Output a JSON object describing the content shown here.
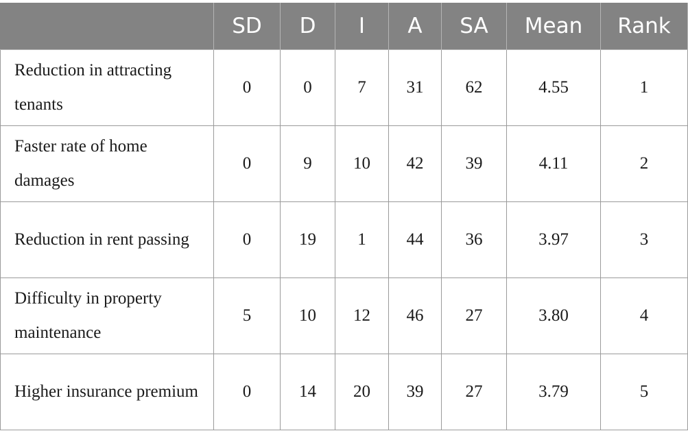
{
  "table": {
    "headers": [
      "",
      "SD",
      "D",
      "I",
      "A",
      "SA",
      "Mean",
      "Rank"
    ],
    "rows": [
      {
        "label": "Reduction in attracting tenants",
        "SD": "0",
        "D": "0",
        "I": "7",
        "A": "31",
        "SA": "62",
        "mean": "4.55",
        "rank": "1"
      },
      {
        "label": "Faster rate of home damages",
        "SD": "0",
        "D": "9",
        "I": "10",
        "A": "42",
        "SA": "39",
        "mean": "4.11",
        "rank": "2"
      },
      {
        "label": "Reduction in rent passing",
        "SD": "0",
        "D": "19",
        "I": "1",
        "A": "44",
        "SA": "36",
        "mean": "3.97",
        "rank": "3"
      },
      {
        "label": "Difficulty in property maintenance",
        "SD": "5",
        "D": "10",
        "I": "12",
        "A": "46",
        "SA": "27",
        "mean": "3.80",
        "rank": "4"
      },
      {
        "label": "Higher insurance premium",
        "SD": "0",
        "D": "14",
        "I": "20",
        "A": "39",
        "SA": "27",
        "mean": "3.79",
        "rank": "5"
      }
    ]
  }
}
